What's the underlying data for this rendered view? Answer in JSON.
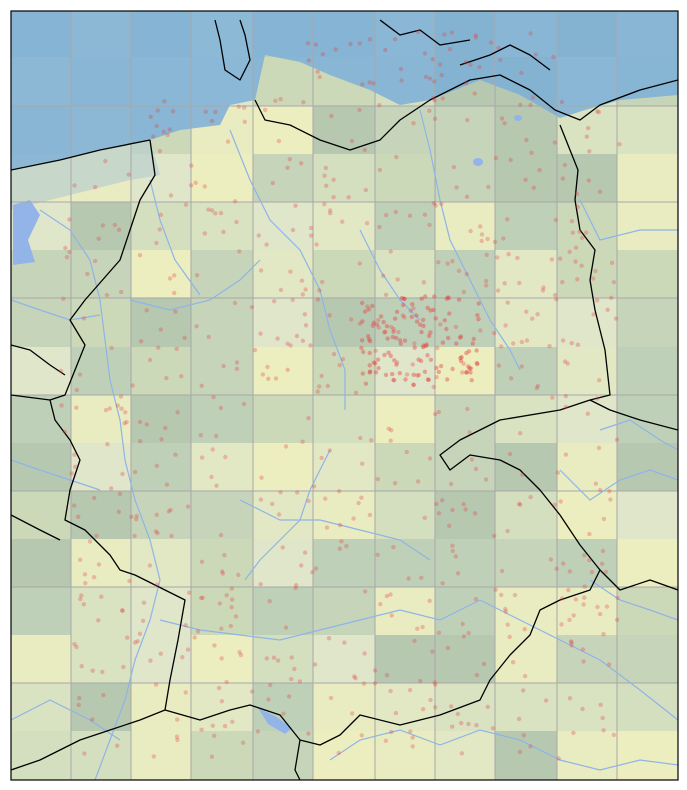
{
  "map": {
    "frame_color": "#000000",
    "grid_color": "#a8a8a8",
    "border_color": "#000000",
    "river_color": "#8fb4e6",
    "lake_color": "#93b4e8",
    "sea_color": "#7bafd8",
    "point_color": "#e33a3a",
    "point_opacity": 0.3,
    "tile_colors": [
      "#e2e8c4",
      "#d9e2c1",
      "#ccd9b8",
      "#e8ecc0",
      "#c6d5b9",
      "#dfe6c9",
      "#bfd0b8",
      "#d4dfbf",
      "#b7c8b1",
      "#eceebf"
    ]
  }
}
